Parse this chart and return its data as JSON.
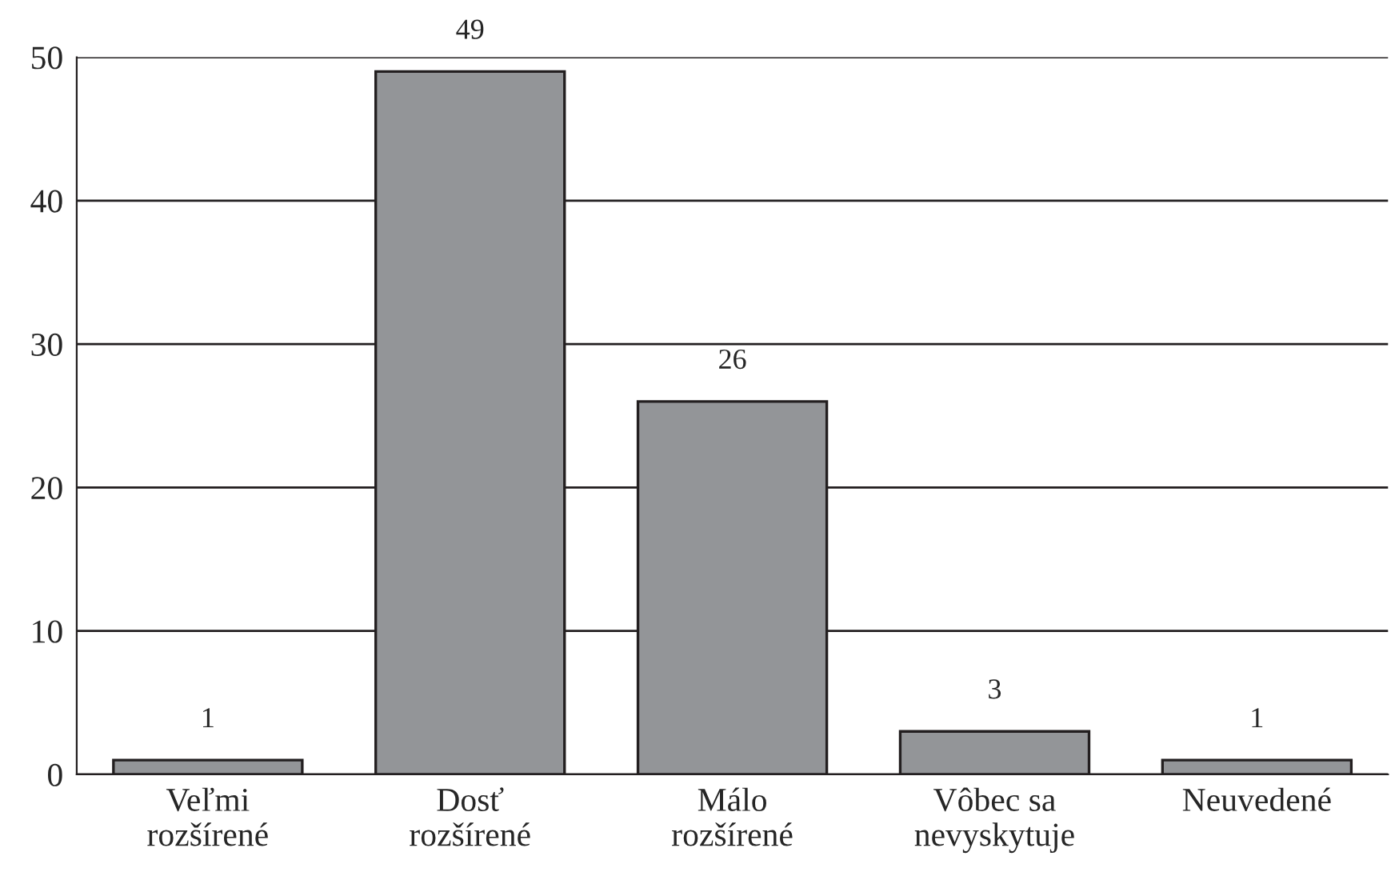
{
  "chart_data": {
    "type": "bar",
    "categories": [
      "Veľmi\nrozšírené",
      "Dosť\nrozšírené",
      "Málo\nrozšírené",
      "Vôbec sa\nnevyskytuje",
      "Neuvedené"
    ],
    "values": [
      1,
      49,
      26,
      3,
      1
    ],
    "color": "#939598",
    "ylim": [
      0,
      50
    ],
    "yticks": [
      0,
      10,
      20,
      30,
      40,
      50
    ],
    "grid": "y",
    "data_labels": true
  }
}
